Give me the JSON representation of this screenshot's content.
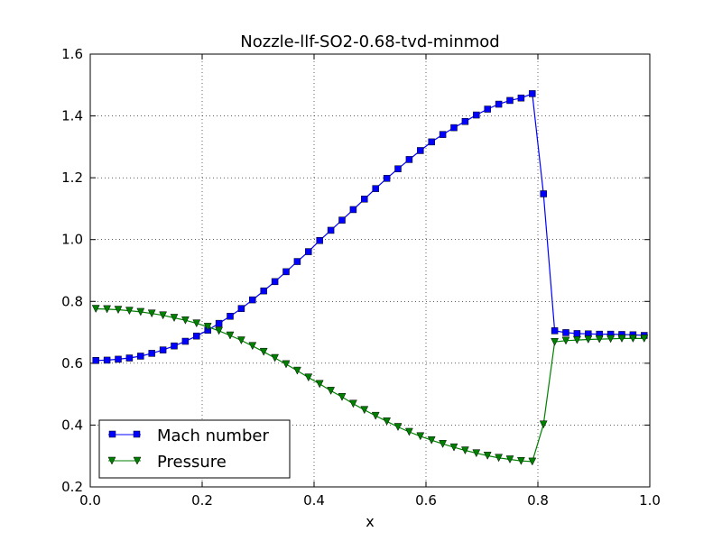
{
  "chart_data": {
    "type": "line",
    "title": "Nozzle-llf-SO2-0.68-tvd-minmod",
    "xlabel": "x",
    "ylabel": "",
    "xlim": [
      0.0,
      1.0
    ],
    "ylim": [
      0.2,
      1.6
    ],
    "xticks": [
      "0.0",
      "0.2",
      "0.4",
      "0.6",
      "0.8",
      "1.0"
    ],
    "yticks": [
      "0.2",
      "0.4",
      "0.6",
      "0.8",
      "1.0",
      "1.2",
      "1.4",
      "1.6"
    ],
    "grid": true,
    "legend_position": "lower-left",
    "series": [
      {
        "name": "Mach number",
        "color": "#0000ff",
        "marker": "square",
        "x": [
          0.01,
          0.03,
          0.05,
          0.07,
          0.09,
          0.11,
          0.13,
          0.15,
          0.17,
          0.19,
          0.21,
          0.23,
          0.25,
          0.27,
          0.29,
          0.31,
          0.33,
          0.35,
          0.37,
          0.39,
          0.41,
          0.43,
          0.45,
          0.47,
          0.49,
          0.51,
          0.53,
          0.55,
          0.57,
          0.59,
          0.61,
          0.63,
          0.65,
          0.67,
          0.69,
          0.71,
          0.73,
          0.75,
          0.77,
          0.79,
          0.81,
          0.83,
          0.85,
          0.87,
          0.89,
          0.91,
          0.93,
          0.95,
          0.97,
          0.99
        ],
        "y": [
          0.609,
          0.61,
          0.613,
          0.617,
          0.623,
          0.632,
          0.643,
          0.656,
          0.671,
          0.688,
          0.707,
          0.729,
          0.752,
          0.777,
          0.805,
          0.834,
          0.864,
          0.896,
          0.929,
          0.961,
          0.997,
          1.03,
          1.063,
          1.097,
          1.131,
          1.165,
          1.198,
          1.229,
          1.259,
          1.288,
          1.316,
          1.34,
          1.362,
          1.382,
          1.403,
          1.422,
          1.438,
          1.45,
          1.458,
          1.472,
          1.148,
          0.705,
          0.699,
          0.696,
          0.695,
          0.694,
          0.694,
          0.693,
          0.692,
          0.69
        ]
      },
      {
        "name": "Pressure",
        "color": "#008000",
        "marker": "triangle-down",
        "x": [
          0.01,
          0.03,
          0.05,
          0.07,
          0.09,
          0.11,
          0.13,
          0.15,
          0.17,
          0.19,
          0.21,
          0.23,
          0.25,
          0.27,
          0.29,
          0.31,
          0.33,
          0.35,
          0.37,
          0.39,
          0.41,
          0.43,
          0.45,
          0.47,
          0.49,
          0.51,
          0.53,
          0.55,
          0.57,
          0.59,
          0.61,
          0.63,
          0.65,
          0.67,
          0.69,
          0.71,
          0.73,
          0.75,
          0.77,
          0.79,
          0.81,
          0.83,
          0.85,
          0.87,
          0.89,
          0.91,
          0.93,
          0.95,
          0.97,
          0.99
        ],
        "y": [
          0.776,
          0.775,
          0.773,
          0.77,
          0.766,
          0.761,
          0.755,
          0.747,
          0.739,
          0.729,
          0.718,
          0.705,
          0.69,
          0.674,
          0.656,
          0.637,
          0.617,
          0.597,
          0.576,
          0.554,
          0.533,
          0.511,
          0.491,
          0.469,
          0.449,
          0.43,
          0.412,
          0.394,
          0.378,
          0.364,
          0.351,
          0.339,
          0.328,
          0.318,
          0.309,
          0.301,
          0.294,
          0.289,
          0.284,
          0.282,
          0.402,
          0.669,
          0.673,
          0.675,
          0.677,
          0.678,
          0.679,
          0.68,
          0.68,
          0.68
        ]
      }
    ]
  }
}
